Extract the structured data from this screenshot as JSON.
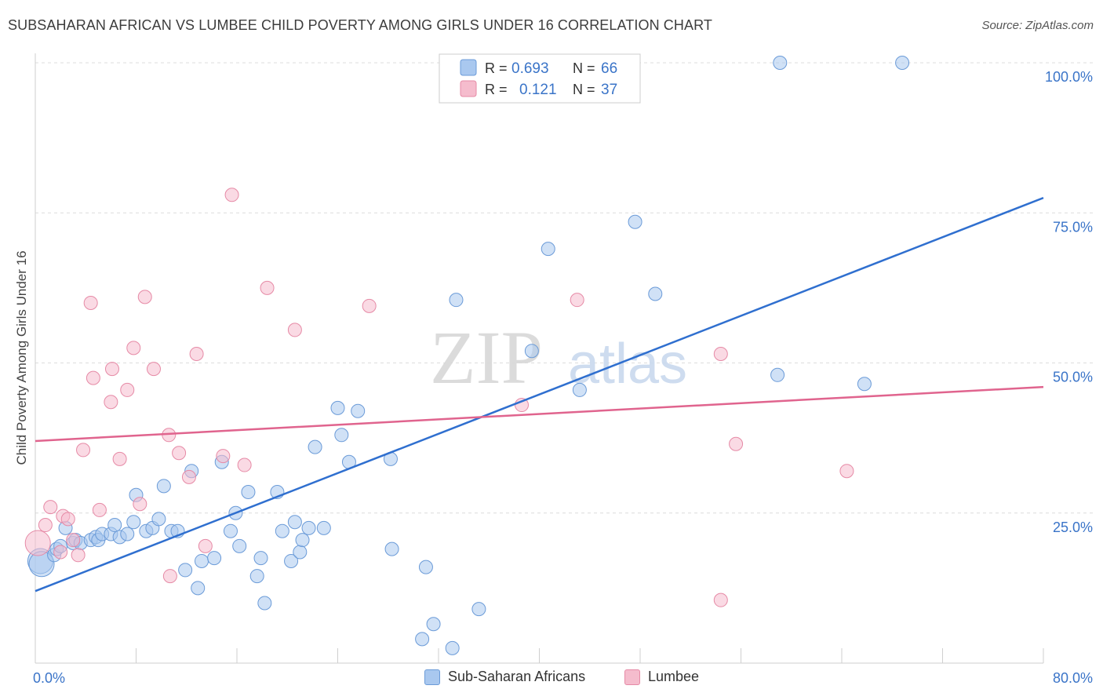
{
  "title": "SUBSAHARAN AFRICAN VS LUMBEE CHILD POVERTY AMONG GIRLS UNDER 16 CORRELATION CHART",
  "source": "Source: ZipAtlas.com",
  "watermark": {
    "zip": "ZIP",
    "atlas": "atlas"
  },
  "colors": {
    "blue_fill": "#a9c8ef",
    "blue_stroke": "#6b9bd8",
    "blue_line": "#2f6fcf",
    "pink_fill": "#f5bccd",
    "pink_stroke": "#e68aa6",
    "pink_line": "#e0648e",
    "axis_text": "#3a74c8",
    "grid": "#dcdcdc"
  },
  "legend": {
    "rows": [
      {
        "r_label": "R =",
        "r_value": "0.693",
        "n_label": "N =",
        "n_value": "66"
      },
      {
        "r_label": "R =",
        "r_value": "0.121",
        "n_label": "N =",
        "n_value": "37"
      }
    ]
  },
  "bottom_legend": [
    "Sub-Saharan Africans",
    "Lumbee"
  ],
  "chart_data": {
    "type": "scatter",
    "title": "SUBSAHARAN AFRICAN VS LUMBEE CHILD POVERTY AMONG GIRLS UNDER 16 CORRELATION CHART",
    "xlabel": "",
    "ylabel": "Child Poverty Among Girls Under 16",
    "xlim": [
      0,
      80
    ],
    "ylim": [
      0,
      100
    ],
    "x_tick_labels": [
      {
        "value": 0,
        "label": "0.0%"
      },
      {
        "value": 80,
        "label": "80.0%"
      }
    ],
    "y_tick_labels": [
      {
        "value": 25,
        "label": "25.0%"
      },
      {
        "value": 50,
        "label": "50.0%"
      },
      {
        "value": 75,
        "label": "75.0%"
      },
      {
        "value": 100,
        "label": "100.0%"
      }
    ],
    "grid": true,
    "legend_position": "top-center",
    "series": [
      {
        "name": "Sub-Saharan Africans",
        "color": "#a9c8ef",
        "trend": {
          "x0": 0,
          "y0": 12,
          "x1": 80,
          "y1": 77.5
        },
        "points": [
          [
            0.4,
            17,
            "l"
          ],
          [
            0.5,
            16.5,
            "l"
          ],
          [
            1.5,
            18
          ],
          [
            1.7,
            19
          ],
          [
            2,
            19.5
          ],
          [
            2.4,
            22.5
          ],
          [
            3,
            20
          ],
          [
            3.2,
            20.5
          ],
          [
            3.6,
            20
          ],
          [
            4.4,
            20.5
          ],
          [
            4.8,
            21
          ],
          [
            5,
            20.5
          ],
          [
            5.3,
            21.5
          ],
          [
            6,
            21.5
          ],
          [
            6.3,
            23
          ],
          [
            6.7,
            21
          ],
          [
            7.3,
            21.5
          ],
          [
            7.8,
            23.5
          ],
          [
            8,
            28
          ],
          [
            8.8,
            22
          ],
          [
            9.3,
            22.5
          ],
          [
            9.8,
            24
          ],
          [
            10.2,
            29.5
          ],
          [
            10.8,
            22
          ],
          [
            11.3,
            22
          ],
          [
            11.9,
            15.5
          ],
          [
            12.4,
            32
          ],
          [
            12.9,
            12.5
          ],
          [
            13.2,
            17
          ],
          [
            14.2,
            17.5
          ],
          [
            14.8,
            33.5
          ],
          [
            15.5,
            22
          ],
          [
            15.9,
            25
          ],
          [
            16.2,
            19.5
          ],
          [
            16.9,
            28.5
          ],
          [
            17.6,
            14.5
          ],
          [
            17.9,
            17.5
          ],
          [
            18.2,
            10
          ],
          [
            19.2,
            28.5
          ],
          [
            19.6,
            22
          ],
          [
            20.3,
            17
          ],
          [
            20.6,
            23.5
          ],
          [
            21,
            18.5
          ],
          [
            21.2,
            20.5
          ],
          [
            21.7,
            22.5
          ],
          [
            22.2,
            36
          ],
          [
            22.9,
            22.5
          ],
          [
            24,
            42.5
          ],
          [
            24.3,
            38
          ],
          [
            24.9,
            33.5
          ],
          [
            25.6,
            42
          ],
          [
            28.2,
            34
          ],
          [
            28.3,
            19
          ],
          [
            30.7,
            4
          ],
          [
            31,
            16
          ],
          [
            31.6,
            6.5
          ],
          [
            33.1,
            2.5
          ],
          [
            33.4,
            60.5
          ],
          [
            35.2,
            9
          ],
          [
            39.4,
            52
          ],
          [
            40.7,
            69
          ],
          [
            43.2,
            45.5
          ],
          [
            47.6,
            73.5
          ],
          [
            49.2,
            61.5
          ],
          [
            58.9,
            48
          ],
          [
            59.1,
            100
          ],
          [
            68.8,
            100
          ],
          [
            65.8,
            46.5
          ]
        ]
      },
      {
        "name": "Lumbee",
        "color": "#f5bccd",
        "trend": {
          "x0": 0,
          "y0": 37,
          "x1": 80,
          "y1": 46
        },
        "points": [
          [
            0.2,
            20,
            "l"
          ],
          [
            0.8,
            23
          ],
          [
            1.2,
            26
          ],
          [
            2,
            18.5
          ],
          [
            2.2,
            24.5
          ],
          [
            2.6,
            24
          ],
          [
            3,
            20.5
          ],
          [
            3.4,
            18
          ],
          [
            3.8,
            35.5
          ],
          [
            4.4,
            60
          ],
          [
            4.6,
            47.5
          ],
          [
            5.1,
            25.5
          ],
          [
            6,
            43.5
          ],
          [
            6.1,
            49
          ],
          [
            6.7,
            34
          ],
          [
            7.3,
            45.5
          ],
          [
            7.8,
            52.5
          ],
          [
            8.3,
            26.5
          ],
          [
            8.7,
            61
          ],
          [
            9.4,
            49
          ],
          [
            10.6,
            38
          ],
          [
            10.7,
            14.5
          ],
          [
            11.4,
            35
          ],
          [
            12.2,
            31
          ],
          [
            12.8,
            51.5
          ],
          [
            13.5,
            19.5
          ],
          [
            14.9,
            34.5
          ],
          [
            15.6,
            78
          ],
          [
            16.6,
            33
          ],
          [
            18.4,
            62.5
          ],
          [
            20.6,
            55.5
          ],
          [
            26.5,
            59.5
          ],
          [
            38.6,
            43
          ],
          [
            43,
            60.5
          ],
          [
            54.4,
            51.5
          ],
          [
            54.4,
            10.5
          ],
          [
            55.6,
            36.5
          ],
          [
            64.4,
            32
          ]
        ]
      }
    ]
  }
}
